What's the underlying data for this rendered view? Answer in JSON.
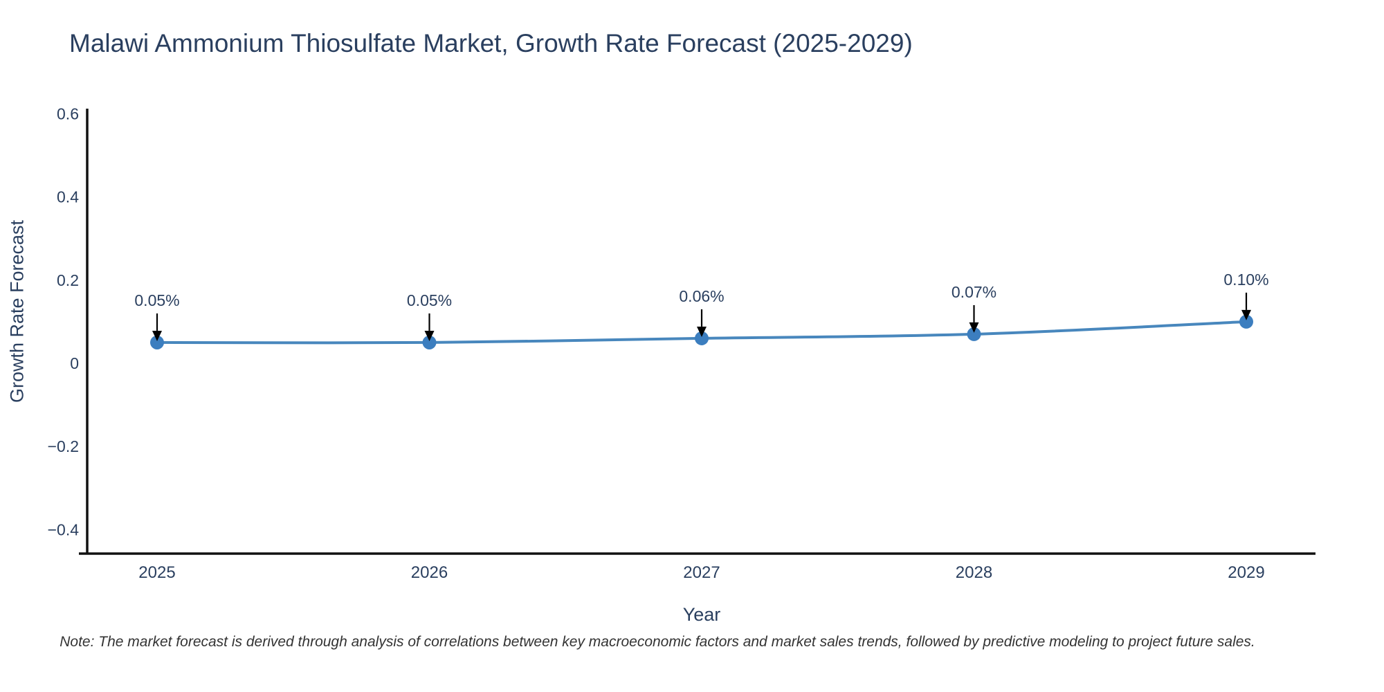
{
  "title": "Malawi Ammonium Thiosulfate Market, Growth Rate Forecast (2025-2029)",
  "note": "Note: The market forecast is derived through analysis of correlations between key macroeconomic factors and market sales trends, followed by predictive modeling to project future sales.",
  "chart_data": {
    "type": "line",
    "title": "Malawi Ammonium Thiosulfate Market, Growth Rate Forecast (2025-2029)",
    "xlabel": "Year",
    "ylabel": "Growth Rate Forecast",
    "x": [
      2025,
      2026,
      2027,
      2028,
      2029
    ],
    "x_tick_labels": [
      "2025",
      "2026",
      "2027",
      "2028",
      "2029"
    ],
    "series": [
      {
        "name": "Growth Rate Forecast",
        "values": [
          0.05,
          0.05,
          0.06,
          0.07,
          0.1
        ]
      }
    ],
    "point_labels": [
      "0.05%",
      "0.05%",
      "0.06%",
      "0.07%",
      "0.10%"
    ],
    "y_tick_labels": [
      "0.6",
      "0.4",
      "0.2",
      "0",
      "−0.2",
      "−0.4"
    ],
    "y_tick_values": [
      0.6,
      0.4,
      0.2,
      0,
      -0.2,
      -0.4
    ],
    "ylim": [
      -0.46,
      0.61
    ],
    "xlim": [
      2024.74,
      2029.25
    ],
    "grid": false,
    "legend": "none",
    "line_shape": "spline",
    "annotations": "value labels with downward arrows onto markers",
    "colors": {
      "line": "#4887bd",
      "marker": "#3c7ebf",
      "axis": "#111111",
      "tick_text": "#2a3f5f",
      "annotation_text": "#2a3f5f",
      "annotation_arrow": "#000000",
      "title_text": "#2a3f5f",
      "note_text": "#333333",
      "background": "#ffffff"
    }
  }
}
